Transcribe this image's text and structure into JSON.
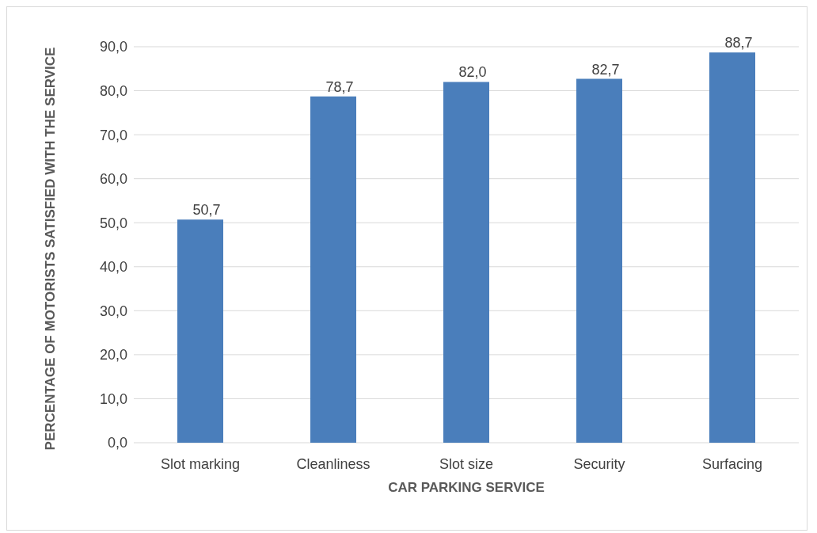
{
  "chart_data": {
    "type": "bar",
    "xlabel": "CAR PARKING SERVICE",
    "ylabel": "PERCENTAGE OF MOTORISTS SATISFIED WITH THE SERVICE",
    "categories": [
      "Slot marking",
      "Cleanliness",
      "Slot size",
      "Security",
      "Surfacing"
    ],
    "values": [
      50.7,
      78.7,
      82.0,
      82.7,
      88.7
    ],
    "value_labels": [
      "50,7",
      "78,7",
      "82,0",
      "82,7",
      "88,7"
    ],
    "color": "#4a7ebb",
    "ylim": [
      0,
      90
    ],
    "yticks": [
      {
        "value": 0,
        "label": "0,0"
      },
      {
        "value": 10,
        "label": "10,0"
      },
      {
        "value": 20,
        "label": "20,0"
      },
      {
        "value": 30,
        "label": "30,0"
      },
      {
        "value": 40,
        "label": "40,0"
      },
      {
        "value": 50,
        "label": "50,0"
      },
      {
        "value": 60,
        "label": "60,0"
      },
      {
        "value": 70,
        "label": "70,0"
      },
      {
        "value": 80,
        "label": "80,0"
      },
      {
        "value": 90,
        "label": "90,0"
      }
    ],
    "grid": "y",
    "legend": false
  }
}
